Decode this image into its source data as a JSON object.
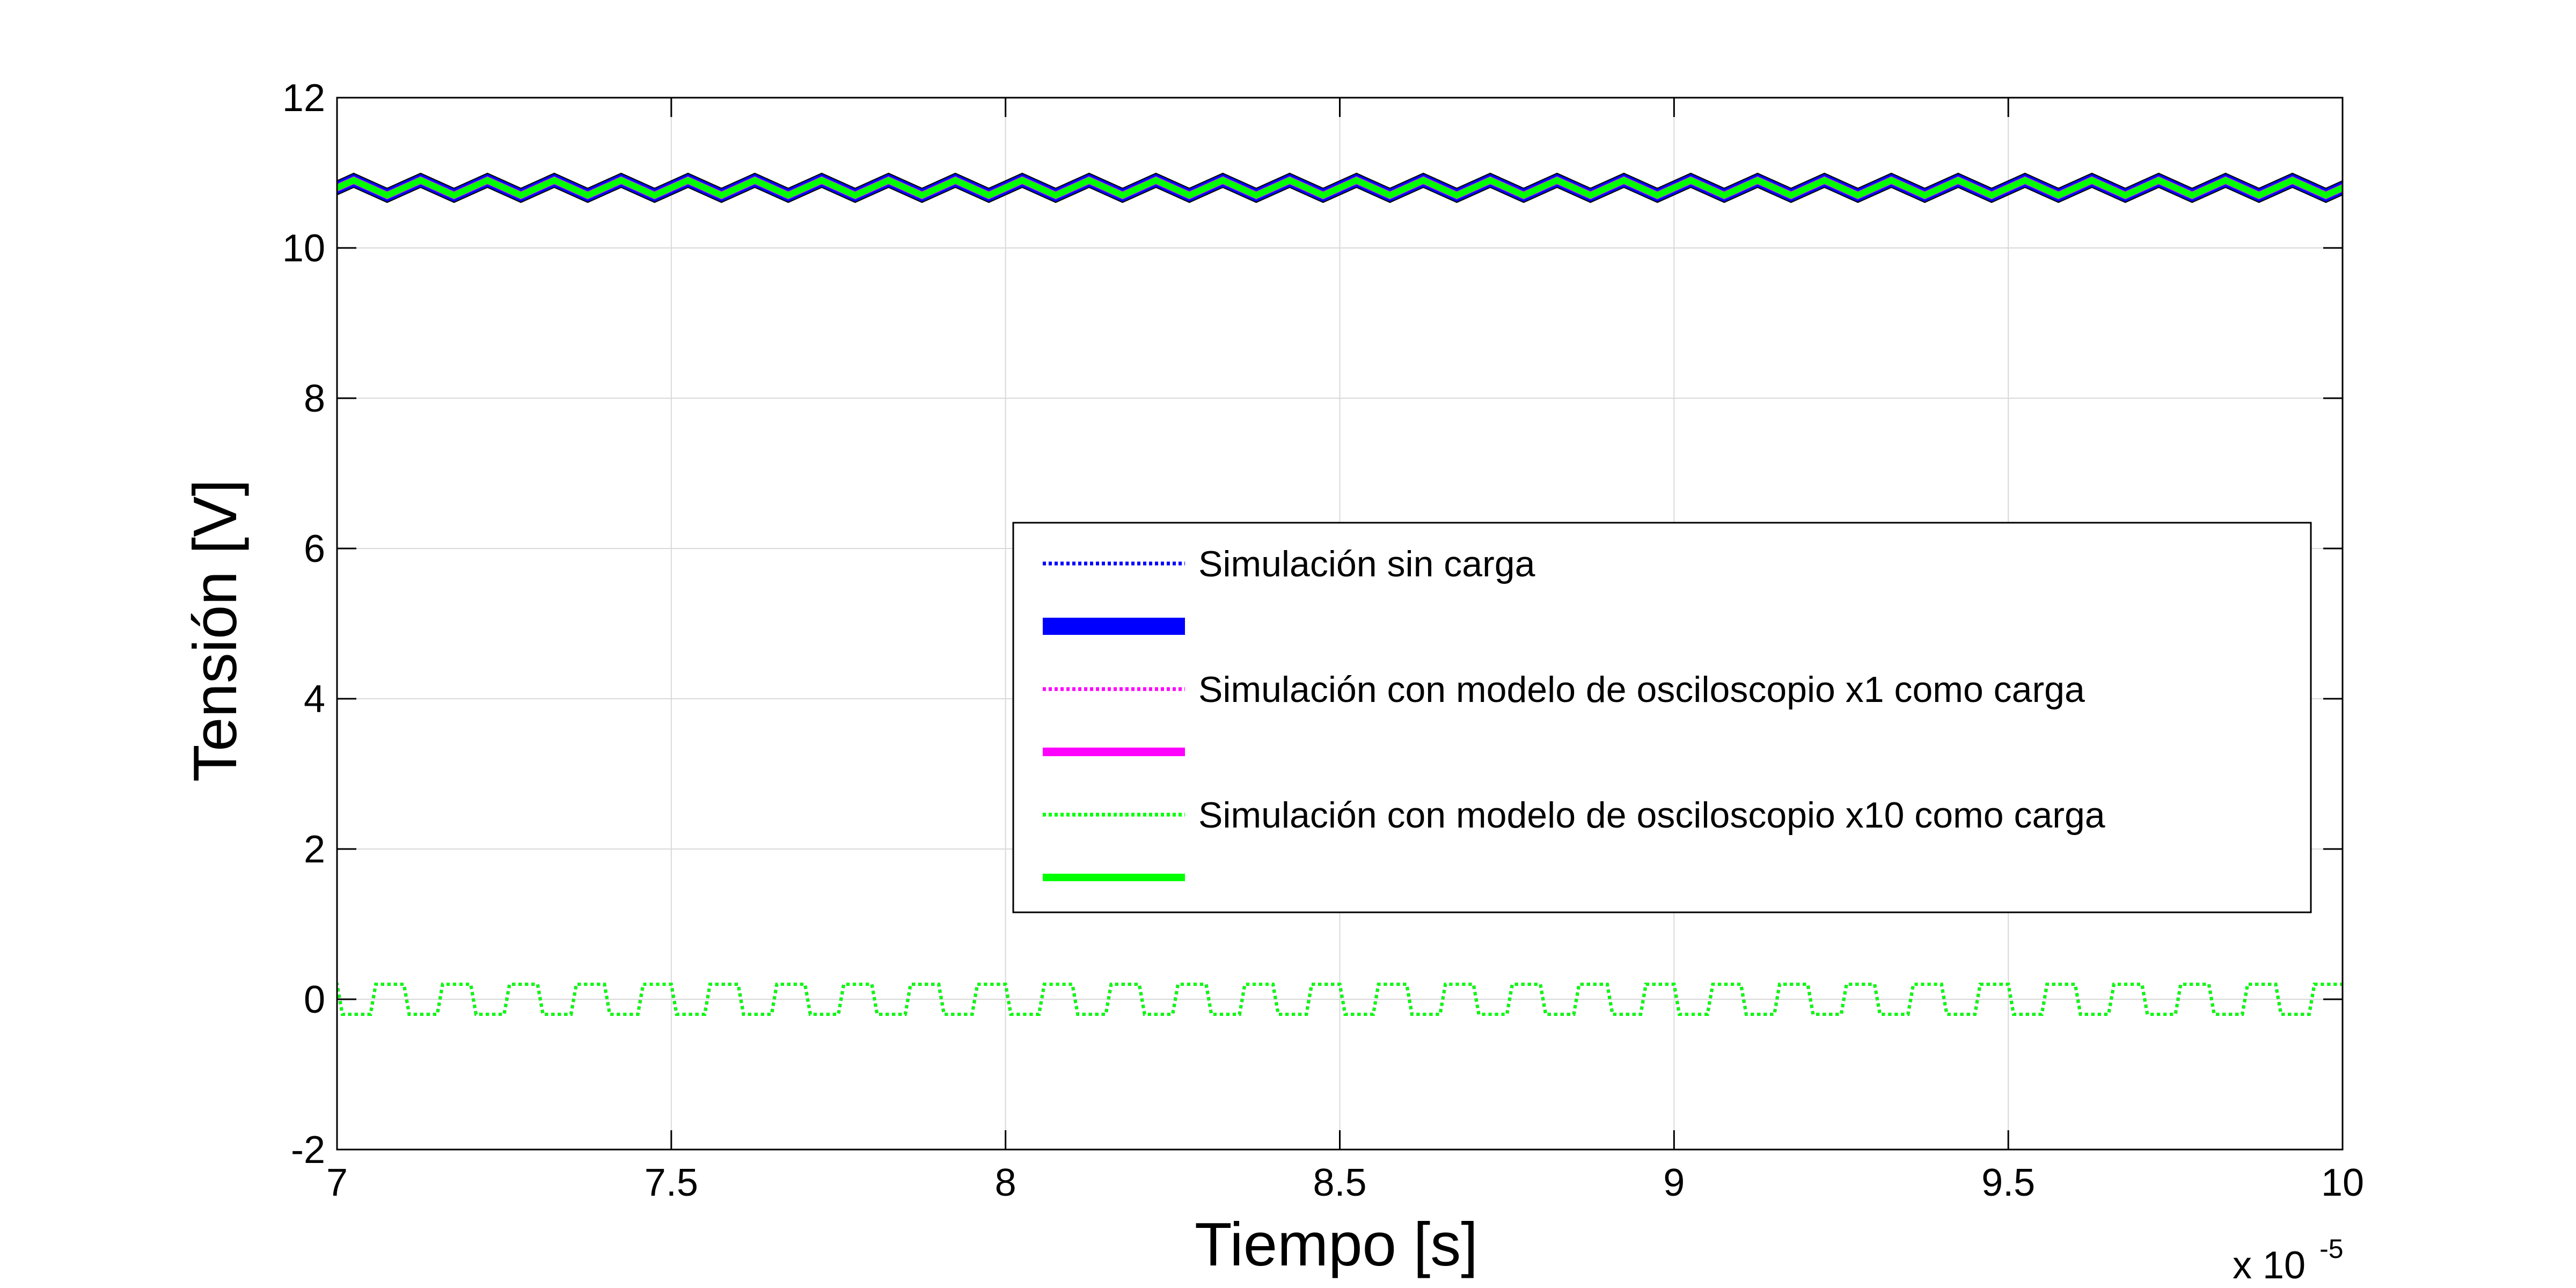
{
  "chart_data": {
    "type": "line",
    "xlabel": "Tiempo [s]",
    "ylabel": "Tensión [V]",
    "x_multiplier": {
      "prefix": "x 10",
      "exponent": "-5"
    },
    "xlim": [
      7,
      10
    ],
    "ylim": [
      -2,
      12
    ],
    "xticks": [
      "7",
      "7.5",
      "8",
      "8.5",
      "9",
      "9.5",
      "10"
    ],
    "yticks": [
      "-2",
      "0",
      "2",
      "4",
      "6",
      "8",
      "10",
      "12"
    ],
    "grid": true,
    "legend_placement": "center-right",
    "period": 0.1,
    "series": [
      {
        "name": "Simulación sin carga",
        "color": "#0000ff",
        "style": "dotted",
        "shape": "square",
        "center": 0,
        "amplitude": 0.2
      },
      {
        "name": "",
        "color": "#0000ff",
        "style": "solid",
        "shape": "triangle",
        "center": 10.8,
        "amplitude": 0.1
      },
      {
        "name": "Simulación con modelo de osciloscopio x1 como carga",
        "color": "#ff00ff",
        "style": "dotted",
        "shape": "square",
        "center": 0,
        "amplitude": 0.2
      },
      {
        "name": "",
        "color": "#ff00ff",
        "style": "solid",
        "shape": "triangle",
        "center": 10.8,
        "amplitude": 0.1
      },
      {
        "name": "Simulación con modelo de osciloscopio x10 como carga",
        "color": "#00ff00",
        "style": "dotted",
        "shape": "square",
        "center": 0,
        "amplitude": 0.2
      },
      {
        "name": "",
        "color": "#00ff00",
        "style": "solid",
        "shape": "triangle",
        "center": 10.8,
        "amplitude": 0.1
      }
    ]
  }
}
